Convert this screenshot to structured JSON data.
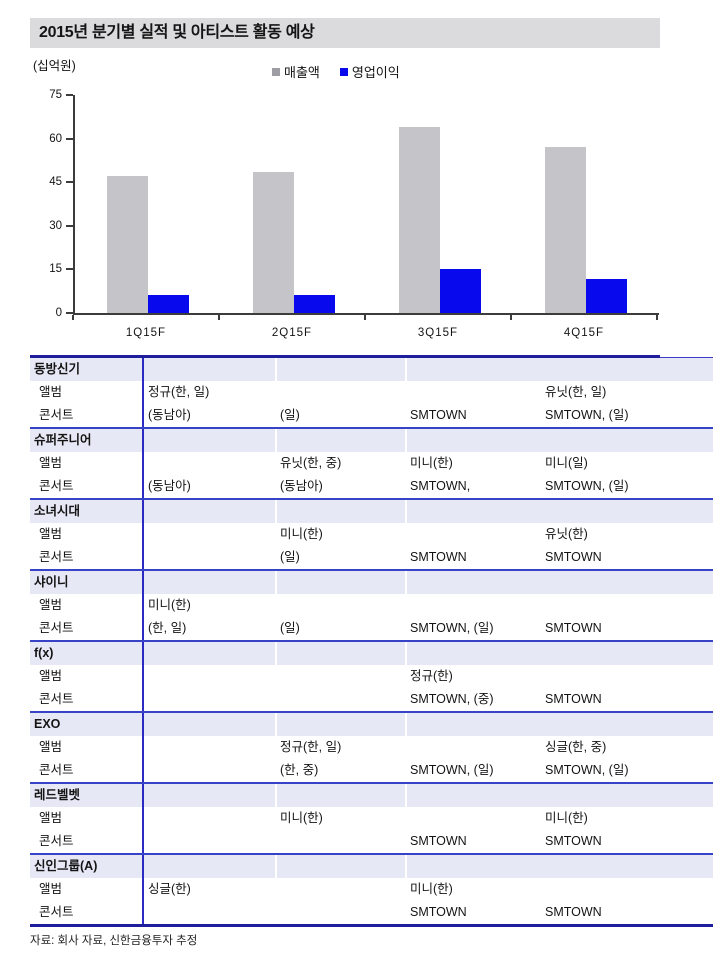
{
  "title": "2015년 분기별 실적 및 아티스트 활동 예상",
  "unit_label": "(십억원)",
  "legend": [
    {
      "label": "매출액",
      "color": "#9d9da3"
    },
    {
      "label": "영업이익",
      "color": "#0909ee"
    }
  ],
  "chart_data": {
    "type": "bar",
    "categories": [
      "1Q15F",
      "2Q15F",
      "3Q15F",
      "4Q15F"
    ],
    "series": [
      {
        "name": "매출액",
        "color": "#c5c4c9",
        "values": [
          47,
          48.5,
          64,
          57
        ]
      },
      {
        "name": "영업이익",
        "color": "#0909ee",
        "values": [
          6.2,
          6.2,
          15.3,
          11.8
        ]
      }
    ],
    "title": "2015년 분기별 실적 및 아티스트 활동 예상",
    "xlabel": "",
    "ylabel": "(십억원)",
    "ylim": [
      0,
      75
    ],
    "yticks": [
      0,
      15,
      30,
      45,
      60,
      75
    ],
    "grid": false,
    "legend_position": "top"
  },
  "table": {
    "row_labels": {
      "album": "앨범",
      "concert": "콘서트"
    },
    "columns": [
      "1Q15F",
      "2Q15F",
      "3Q15F",
      "4Q15F"
    ],
    "groups": [
      {
        "name": "동방신기",
        "album": [
          "정규(한, 일)",
          "",
          "",
          "유닛(한, 일)"
        ],
        "concert": [
          "(동남아)",
          "(일)",
          "SMTOWN",
          "SMTOWN, (일)"
        ]
      },
      {
        "name": "슈퍼주니어",
        "album": [
          "",
          "유닛(한, 중)",
          "미니(한)",
          "미니(일)"
        ],
        "concert": [
          "(동남아)",
          "(동남아)",
          "SMTOWN,",
          "SMTOWN, (일)"
        ]
      },
      {
        "name": "소녀시대",
        "album": [
          "",
          "미니(한)",
          "",
          "유닛(한)"
        ],
        "concert": [
          "",
          "(일)",
          "SMTOWN",
          "SMTOWN"
        ]
      },
      {
        "name": "샤이니",
        "album": [
          "미니(한)",
          "",
          "",
          ""
        ],
        "concert": [
          "(한, 일)",
          "(일)",
          "SMTOWN, (일)",
          "SMTOWN"
        ]
      },
      {
        "name": "f(x)",
        "album": [
          "",
          "",
          "정규(한)",
          ""
        ],
        "concert": [
          "",
          "",
          "SMTOWN, (중)",
          "SMTOWN"
        ]
      },
      {
        "name": "EXO",
        "album": [
          "",
          "정규(한, 일)",
          "",
          "싱글(한, 중)"
        ],
        "concert": [
          "",
          "(한, 중)",
          "SMTOWN, (일)",
          "SMTOWN, (일)"
        ]
      },
      {
        "name": "레드벨벳",
        "album": [
          "",
          "미니(한)",
          "",
          "미니(한)"
        ],
        "concert": [
          "",
          "",
          "SMTOWN",
          "SMTOWN"
        ]
      },
      {
        "name": "신인그룹(A)",
        "album": [
          "싱글(한)",
          "",
          "미니(한)",
          ""
        ],
        "concert": [
          "",
          "",
          "SMTOWN",
          "SMTOWN"
        ]
      }
    ]
  },
  "footer": "자료: 회사 자료, 신한금융투자 추정"
}
